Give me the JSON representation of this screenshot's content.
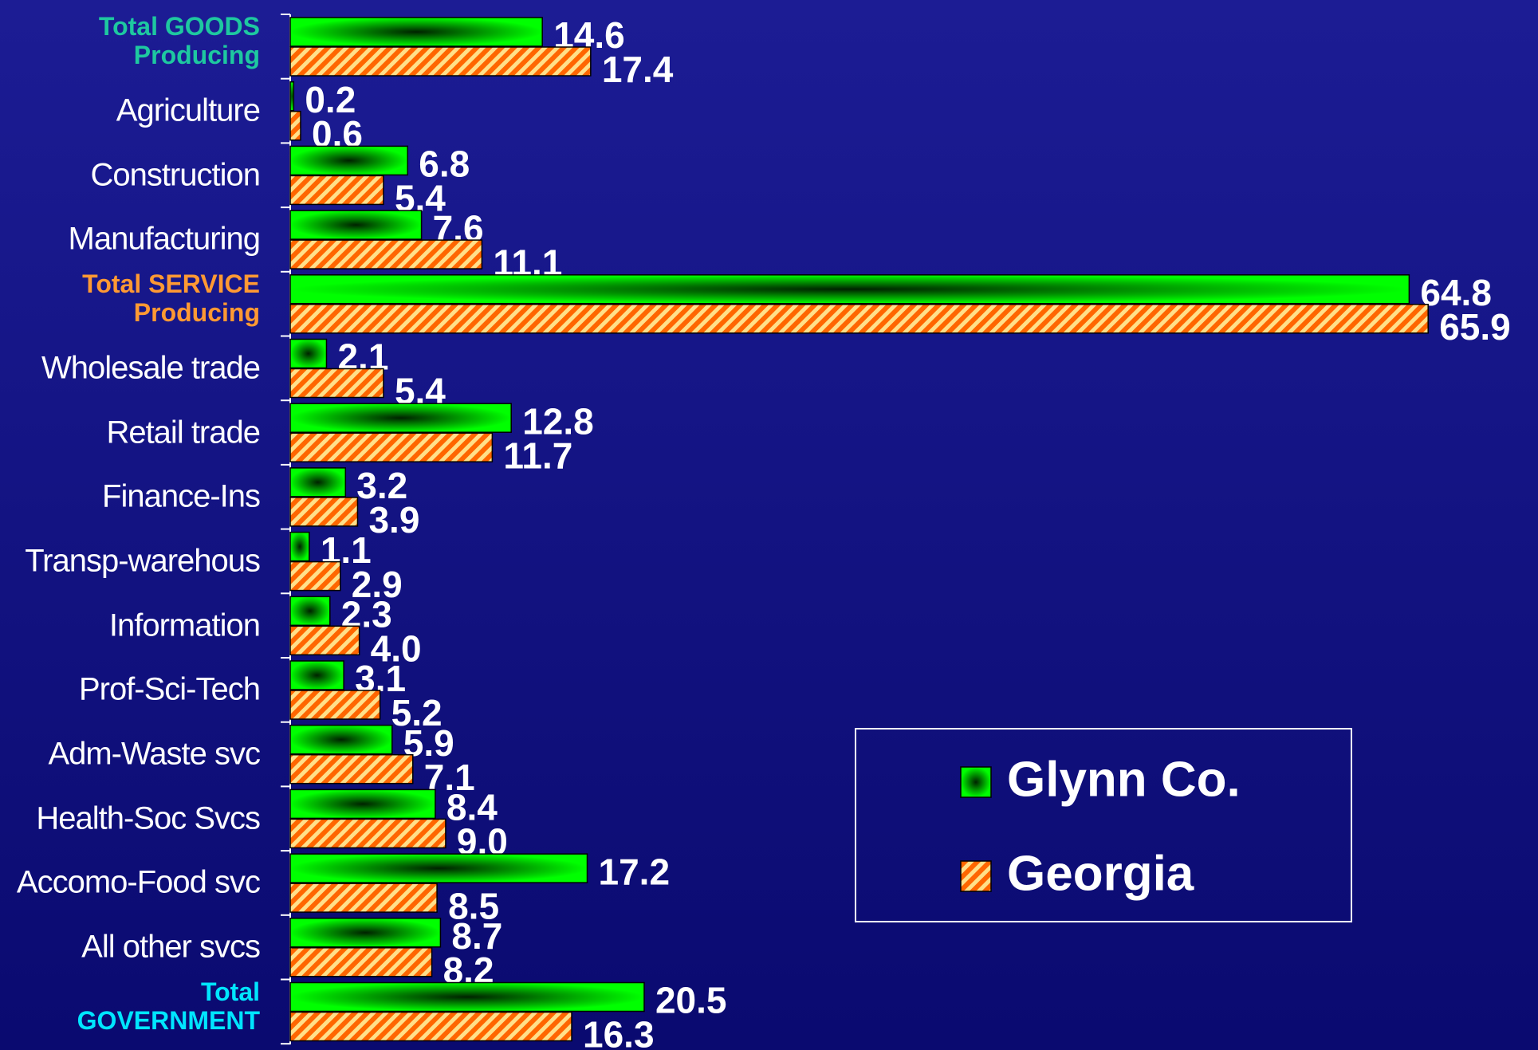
{
  "chart_data": {
    "type": "hbar",
    "categories": [
      "Total GOODS Producing",
      "Agriculture",
      "Construction",
      "Manufacturing",
      "Total SERVICE Producing",
      "Wholesale trade",
      "Retail trade",
      "Finance-Ins",
      "Transp-warehous",
      "Information",
      "Prof-Sci-Tech",
      "Adm-Waste svc",
      "Health-Soc Svcs",
      "Accomo-Food svc",
      "All other svcs",
      "Total GOVERNMENT"
    ],
    "category_label_colors": [
      "#1ec8a0",
      "#ffffff",
      "#ffffff",
      "#ffffff",
      "#ff9933",
      "#ffffff",
      "#ffffff",
      "#ffffff",
      "#ffffff",
      "#ffffff",
      "#ffffff",
      "#ffffff",
      "#ffffff",
      "#ffffff",
      "#ffffff",
      "#00e5ff"
    ],
    "series": [
      {
        "name": "Glynn Co.",
        "color": "#00ff00",
        "values": [
          14.6,
          0.2,
          6.8,
          7.6,
          64.8,
          2.1,
          12.8,
          3.2,
          1.1,
          2.3,
          3.1,
          5.9,
          8.4,
          17.2,
          8.7,
          20.5
        ],
        "value_labels": [
          "14.6",
          "0.2",
          "6.8",
          "7.6",
          "64.8",
          "2.1",
          "12.8",
          "3.2",
          "1.1",
          "2.3",
          "3.1",
          "5.9",
          "8.4",
          "17.2",
          "8.7",
          "20.5"
        ]
      },
      {
        "name": "Georgia",
        "color": "#ff6600",
        "values": [
          17.4,
          0.6,
          5.4,
          11.1,
          65.9,
          5.4,
          11.7,
          3.9,
          2.9,
          4.0,
          5.2,
          7.1,
          9.0,
          8.5,
          8.2,
          16.3
        ],
        "value_labels": [
          "17.4",
          "0.6",
          "5.4",
          "11.1",
          "65.9",
          "5.4",
          "11.7",
          "3.9",
          "2.9",
          "4.0",
          "5.2",
          "7.1",
          "9.0",
          "8.5",
          "8.2",
          "16.3"
        ]
      }
    ],
    "xlim": [
      0,
      70
    ],
    "legend": "lower right"
  }
}
